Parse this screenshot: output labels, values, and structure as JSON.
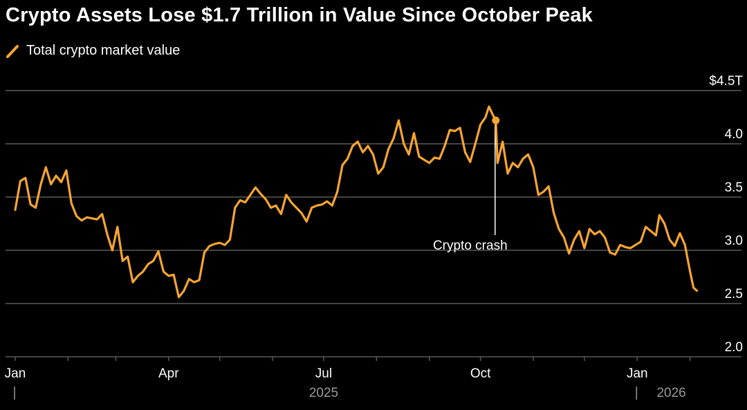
{
  "colors": {
    "background": "#000000",
    "series": "#f7a531",
    "gridline": "#5a5a5a",
    "text": "#ffffff",
    "year_label": "#9a9a9a",
    "annotation_line": "#ffffff"
  },
  "chart_data": {
    "type": "line",
    "title": "Crypto Assets Lose $1.7 Trillion in Value Since October Peak",
    "legend": "Total crypto market value",
    "legend_placement": "top-left",
    "y_axis_side": "right",
    "ylim": [
      2.0,
      4.5
    ],
    "y_ticks": [
      {
        "value": 4.5,
        "label": "$4.5T"
      },
      {
        "value": 4.0,
        "label": "4.0"
      },
      {
        "value": 3.5,
        "label": "3.5"
      },
      {
        "value": 3.0,
        "label": "3.0"
      },
      {
        "value": 2.5,
        "label": "2.5"
      },
      {
        "value": 2.0,
        "label": "2.0"
      }
    ],
    "x_range": [
      "2025-01-01",
      "2026-02-06"
    ],
    "x_ticks": [
      {
        "date": "2025-01-01",
        "label": "Jan"
      },
      {
        "date": "2025-04-01",
        "label": "Apr"
      },
      {
        "date": "2025-07-01",
        "label": "Jul"
      },
      {
        "date": "2025-10-01",
        "label": "Oct"
      },
      {
        "date": "2026-01-01",
        "label": "Jan"
      }
    ],
    "year_labels": [
      {
        "date": "2025-07-01",
        "label": "2025"
      },
      {
        "date": "2026-01-21",
        "label": "2026"
      }
    ],
    "year_dividers": [
      "2025-01-01",
      "2026-01-01"
    ],
    "grid": "horizontal",
    "annotation": {
      "text": "Crypto crash",
      "date": "2025-10-10",
      "value": 4.22
    },
    "series": [
      {
        "name": "Total crypto market value",
        "color": "#f7a531",
        "points": [
          [
            "2025-01-01",
            3.38
          ],
          [
            "2025-01-04",
            3.65
          ],
          [
            "2025-01-07",
            3.68
          ],
          [
            "2025-01-10",
            3.43
          ],
          [
            "2025-01-13",
            3.4
          ],
          [
            "2025-01-16",
            3.62
          ],
          [
            "2025-01-19",
            3.78
          ],
          [
            "2025-01-22",
            3.62
          ],
          [
            "2025-01-25",
            3.7
          ],
          [
            "2025-01-28",
            3.64
          ],
          [
            "2025-01-31",
            3.75
          ],
          [
            "2025-02-03",
            3.44
          ],
          [
            "2025-02-06",
            3.32
          ],
          [
            "2025-02-09",
            3.28
          ],
          [
            "2025-02-12",
            3.31
          ],
          [
            "2025-02-15",
            3.3
          ],
          [
            "2025-02-18",
            3.29
          ],
          [
            "2025-02-21",
            3.34
          ],
          [
            "2025-02-24",
            3.15
          ],
          [
            "2025-02-27",
            3.0
          ],
          [
            "2025-03-02",
            3.22
          ],
          [
            "2025-03-05",
            2.9
          ],
          [
            "2025-03-08",
            2.94
          ],
          [
            "2025-03-11",
            2.7
          ],
          [
            "2025-03-14",
            2.76
          ],
          [
            "2025-03-17",
            2.8
          ],
          [
            "2025-03-20",
            2.87
          ],
          [
            "2025-03-23",
            2.9
          ],
          [
            "2025-03-26",
            2.99
          ],
          [
            "2025-03-29",
            2.8
          ],
          [
            "2025-04-01",
            2.76
          ],
          [
            "2025-04-04",
            2.77
          ],
          [
            "2025-04-07",
            2.56
          ],
          [
            "2025-04-10",
            2.62
          ],
          [
            "2025-04-13",
            2.73
          ],
          [
            "2025-04-16",
            2.7
          ],
          [
            "2025-04-19",
            2.72
          ],
          [
            "2025-04-22",
            2.98
          ],
          [
            "2025-04-25",
            3.04
          ],
          [
            "2025-04-28",
            3.06
          ],
          [
            "2025-05-01",
            3.07
          ],
          [
            "2025-05-04",
            3.05
          ],
          [
            "2025-05-07",
            3.1
          ],
          [
            "2025-05-10",
            3.4
          ],
          [
            "2025-05-13",
            3.47
          ],
          [
            "2025-05-16",
            3.45
          ],
          [
            "2025-05-19",
            3.52
          ],
          [
            "2025-05-22",
            3.59
          ],
          [
            "2025-05-25",
            3.53
          ],
          [
            "2025-05-28",
            3.48
          ],
          [
            "2025-05-31",
            3.4
          ],
          [
            "2025-06-03",
            3.42
          ],
          [
            "2025-06-06",
            3.34
          ],
          [
            "2025-06-09",
            3.52
          ],
          [
            "2025-06-12",
            3.45
          ],
          [
            "2025-06-15",
            3.4
          ],
          [
            "2025-06-18",
            3.35
          ],
          [
            "2025-06-21",
            3.27
          ],
          [
            "2025-06-24",
            3.4
          ],
          [
            "2025-06-27",
            3.42
          ],
          [
            "2025-06-30",
            3.43
          ],
          [
            "2025-07-03",
            3.46
          ],
          [
            "2025-07-06",
            3.42
          ],
          [
            "2025-07-09",
            3.55
          ],
          [
            "2025-07-12",
            3.8
          ],
          [
            "2025-07-15",
            3.86
          ],
          [
            "2025-07-18",
            3.98
          ],
          [
            "2025-07-21",
            4.02
          ],
          [
            "2025-07-24",
            3.92
          ],
          [
            "2025-07-27",
            3.98
          ],
          [
            "2025-07-30",
            3.9
          ],
          [
            "2025-08-02",
            3.72
          ],
          [
            "2025-08-05",
            3.78
          ],
          [
            "2025-08-08",
            3.95
          ],
          [
            "2025-08-11",
            4.05
          ],
          [
            "2025-08-14",
            4.22
          ],
          [
            "2025-08-17",
            4.0
          ],
          [
            "2025-08-20",
            3.9
          ],
          [
            "2025-08-23",
            4.1
          ],
          [
            "2025-08-26",
            3.88
          ],
          [
            "2025-08-29",
            3.85
          ],
          [
            "2025-09-01",
            3.82
          ],
          [
            "2025-09-04",
            3.87
          ],
          [
            "2025-09-07",
            3.86
          ],
          [
            "2025-09-10",
            3.98
          ],
          [
            "2025-09-13",
            4.13
          ],
          [
            "2025-09-16",
            4.12
          ],
          [
            "2025-09-19",
            4.15
          ],
          [
            "2025-09-22",
            3.92
          ],
          [
            "2025-09-25",
            3.83
          ],
          [
            "2025-09-28",
            4.0
          ],
          [
            "2025-10-01",
            4.18
          ],
          [
            "2025-10-04",
            4.25
          ],
          [
            "2025-10-06",
            4.35
          ],
          [
            "2025-10-08",
            4.28
          ],
          [
            "2025-10-10",
            4.22
          ],
          [
            "2025-10-11",
            3.82
          ],
          [
            "2025-10-14",
            4.02
          ],
          [
            "2025-10-17",
            3.72
          ],
          [
            "2025-10-20",
            3.82
          ],
          [
            "2025-10-23",
            3.78
          ],
          [
            "2025-10-26",
            3.86
          ],
          [
            "2025-10-29",
            3.9
          ],
          [
            "2025-11-01",
            3.78
          ],
          [
            "2025-11-04",
            3.52
          ],
          [
            "2025-11-07",
            3.55
          ],
          [
            "2025-11-10",
            3.6
          ],
          [
            "2025-11-13",
            3.35
          ],
          [
            "2025-11-16",
            3.2
          ],
          [
            "2025-11-19",
            3.12
          ],
          [
            "2025-11-22",
            2.97
          ],
          [
            "2025-11-25",
            3.1
          ],
          [
            "2025-11-28",
            3.18
          ],
          [
            "2025-12-01",
            3.02
          ],
          [
            "2025-12-04",
            3.2
          ],
          [
            "2025-12-07",
            3.15
          ],
          [
            "2025-12-10",
            3.18
          ],
          [
            "2025-12-13",
            3.12
          ],
          [
            "2025-12-16",
            2.98
          ],
          [
            "2025-12-19",
            2.96
          ],
          [
            "2025-12-22",
            3.05
          ],
          [
            "2025-12-25",
            3.03
          ],
          [
            "2025-12-28",
            3.02
          ],
          [
            "2025-12-31",
            3.05
          ],
          [
            "2026-01-03",
            3.08
          ],
          [
            "2026-01-06",
            3.22
          ],
          [
            "2026-01-09",
            3.18
          ],
          [
            "2026-01-12",
            3.14
          ],
          [
            "2026-01-14",
            3.33
          ],
          [
            "2026-01-17",
            3.25
          ],
          [
            "2026-01-20",
            3.1
          ],
          [
            "2026-01-23",
            3.04
          ],
          [
            "2026-01-26",
            3.16
          ],
          [
            "2026-01-29",
            3.05
          ],
          [
            "2026-02-01",
            2.8
          ],
          [
            "2026-02-03",
            2.65
          ],
          [
            "2026-02-05",
            2.62
          ]
        ]
      }
    ]
  }
}
